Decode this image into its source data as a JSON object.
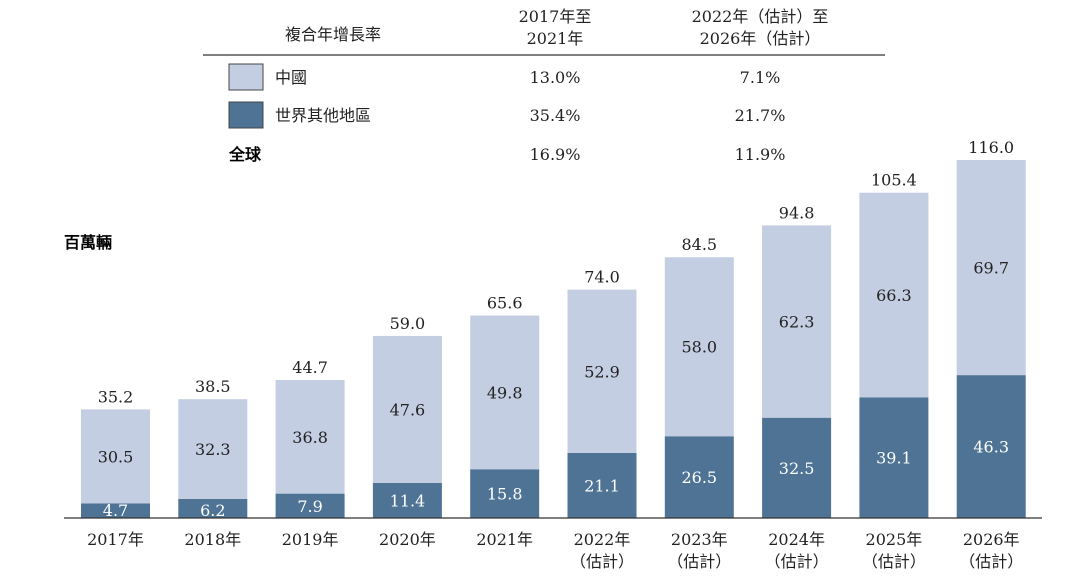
{
  "legend_table": {
    "header": {
      "title": "複合年增長率",
      "col1": [
        "2017年至",
        "2021年"
      ],
      "col2": [
        "2022年（估計）至",
        "2026年（估計）"
      ]
    },
    "rows": [
      {
        "label": "中國",
        "col1": "13.0%",
        "col2": "7.1%",
        "color": "#c3cee2"
      },
      {
        "label": "世界其他地區",
        "col1": "35.4%",
        "col2": "21.7%",
        "color": "#4e7395"
      },
      {
        "label": "全球",
        "col1": "16.9%",
        "col2": "11.9%"
      }
    ]
  },
  "chart_data": {
    "type": "bar",
    "stacked": true,
    "ylabel": "百萬輛",
    "categories": [
      [
        "2017年"
      ],
      [
        "2018年"
      ],
      [
        "2019年"
      ],
      [
        "2020年"
      ],
      [
        "2021年"
      ],
      [
        "2022年",
        "（估計）"
      ],
      [
        "2023年",
        "（估計）"
      ],
      [
        "2024年",
        "（估計）"
      ],
      [
        "2025年",
        "（估計）"
      ],
      [
        "2026年",
        "（估計）"
      ]
    ],
    "series": [
      {
        "name": "世界其他地區",
        "color": "#4e7395",
        "values": [
          4.7,
          6.2,
          7.9,
          11.4,
          15.8,
          21.1,
          26.5,
          32.5,
          39.1,
          46.3
        ]
      },
      {
        "name": "中國",
        "color": "#c3cee2",
        "values": [
          30.5,
          32.3,
          36.8,
          47.6,
          49.8,
          52.9,
          58.0,
          62.3,
          66.3,
          69.7
        ]
      }
    ],
    "totals": [
      "35.2",
      "38.5",
      "44.7",
      "59.0",
      "65.6",
      "74.0",
      "84.5",
      "94.8",
      "105.4",
      "116.0"
    ],
    "value_labels": {
      "世界其他地區": [
        "4.7",
        "6.2",
        "7.9",
        "11.4",
        "15.8",
        "21.1",
        "26.5",
        "32.5",
        "39.1",
        "46.3"
      ],
      "中國": [
        "30.5",
        "32.3",
        "36.8",
        "47.6",
        "49.8",
        "52.9",
        "58.0",
        "62.3",
        "66.3",
        "69.7"
      ]
    },
    "ylim": [
      0,
      116
    ],
    "grid": false,
    "legend": "top"
  }
}
